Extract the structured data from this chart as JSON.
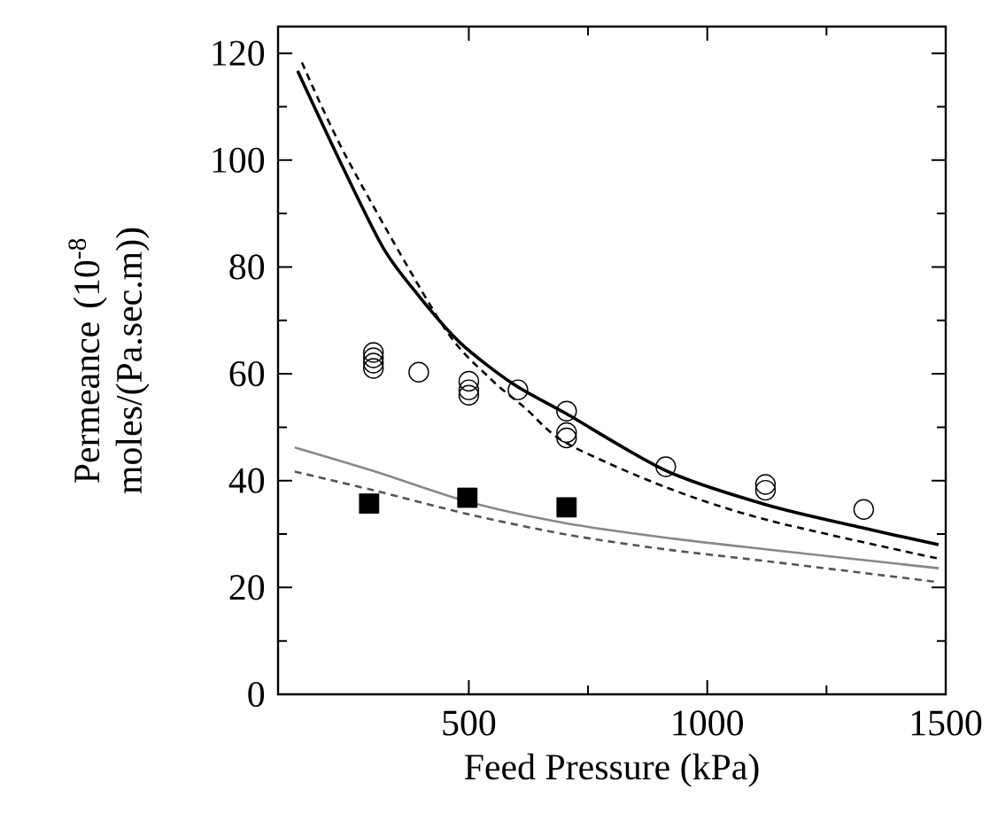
{
  "chart_data": {
    "type": "scatter",
    "xlabel": "Feed Pressure (kPa)",
    "ylabel": "Permeance (10$^{-8}$ moles/(Pa.sec.m))",
    "xlim": [
      100,
      1500
    ],
    "ylim": [
      0,
      125
    ],
    "xticks": [
      500,
      1000,
      1500
    ],
    "yticks": [
      0,
      20,
      40,
      60,
      80,
      100,
      120
    ],
    "grid": false,
    "series": [
      {
        "marker": "circle",
        "color": "#000000",
        "x": [
          300,
          300,
          300,
          300,
          395,
          500,
          500,
          500,
          603,
          705,
          705,
          705,
          913,
          1122,
          1122,
          1328
        ],
        "values": [
          61,
          62,
          63,
          64,
          60.3,
          56,
          57,
          58.6,
          57,
          53,
          49,
          48,
          42.6,
          39.3,
          38.2,
          34.6
        ]
      },
      {
        "marker": "square",
        "color": "#000000",
        "x": [
          291,
          497,
          705
        ],
        "values": [
          35.7,
          36.8,
          35
        ]
      },
      {
        "type": "line",
        "marker": "none",
        "line_style": "solid",
        "color": "#000000",
        "x": [
          141,
          234,
          321,
          395,
          482,
          593,
          705,
          915,
          1127,
          1324,
          1485
        ],
        "values": [
          116.7,
          99,
          83.5,
          74.6,
          65.8,
          58.1,
          52.5,
          41.8,
          35.4,
          31.2,
          28
        ]
      },
      {
        "type": "line",
        "marker": "none",
        "line_style": "dashed",
        "color": "#000000",
        "x": [
          150,
          246,
          445,
          544,
          618,
          705,
          915,
          1127,
          1485
        ],
        "values": [
          118.3,
          100.1,
          69.1,
          59.2,
          53.6,
          47,
          38.7,
          32.6,
          25.4
        ]
      },
      {
        "type": "line",
        "marker": "none",
        "line_style": "solid",
        "color": "#888888",
        "x": [
          135,
          300,
          500,
          705,
          915,
          1127,
          1485
        ],
        "values": [
          46.2,
          41.8,
          36,
          32,
          29.3,
          27.1,
          23.6
        ]
      },
      {
        "type": "line",
        "marker": "none",
        "line_style": "dashed",
        "color": "#555555",
        "x": [
          135,
          300,
          500,
          705,
          915,
          1127,
          1485
        ],
        "values": [
          41.7,
          38.2,
          33.7,
          29.9,
          27.1,
          24.9,
          21
        ]
      }
    ]
  }
}
